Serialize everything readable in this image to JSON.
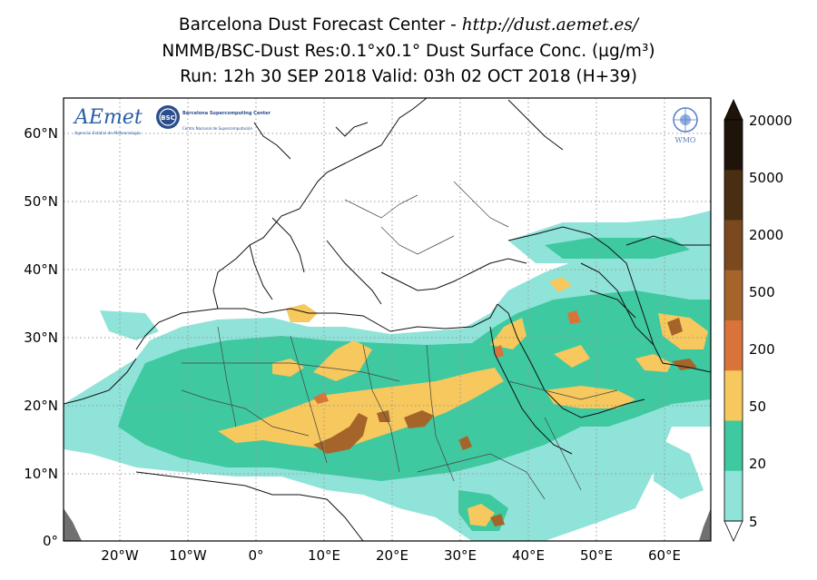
{
  "header": {
    "line1_prefix": "Barcelona Dust Forecast Center - ",
    "line1_url": "http://dust.aemet.es/",
    "line2": "NMMB/BSC-Dust    Res:0.1°x0.1°    Dust Surface Conc. (µg/m³)",
    "line3": "Run: 12h 30 SEP 2018   Valid: 03h 02 OCT 2018 (H+39)"
  },
  "map": {
    "lat_labels": [
      "60°N",
      "50°N",
      "40°N",
      "30°N",
      "20°N",
      "10°N",
      "0°"
    ],
    "lon_labels": [
      "20°W",
      "10°W",
      "0°",
      "10°E",
      "20°E",
      "30°E",
      "40°E",
      "50°E",
      "60°E"
    ],
    "lon_range": [
      -28,
      67
    ],
    "lat_range": [
      0,
      65
    ]
  },
  "logos": {
    "aemet": "AEmet",
    "aemet_sub": "Agencia Estatal de Meteorología",
    "bsc": "BSC",
    "bsc_name": "Barcelona Supercomputing Center",
    "bsc_sub": "Centro Nacional de Supercomputación",
    "wmo": "WMO"
  },
  "colorbar": {
    "labels": [
      "20000",
      "5000",
      "2000",
      "500",
      "200",
      "50",
      "20",
      "5"
    ],
    "colors": [
      "#1f140a",
      "#4a2e12",
      "#7a4a1e",
      "#a5652a",
      "#d9733a",
      "#f6c85d",
      "#3ec9a0",
      "#8fe3d9"
    ]
  }
}
